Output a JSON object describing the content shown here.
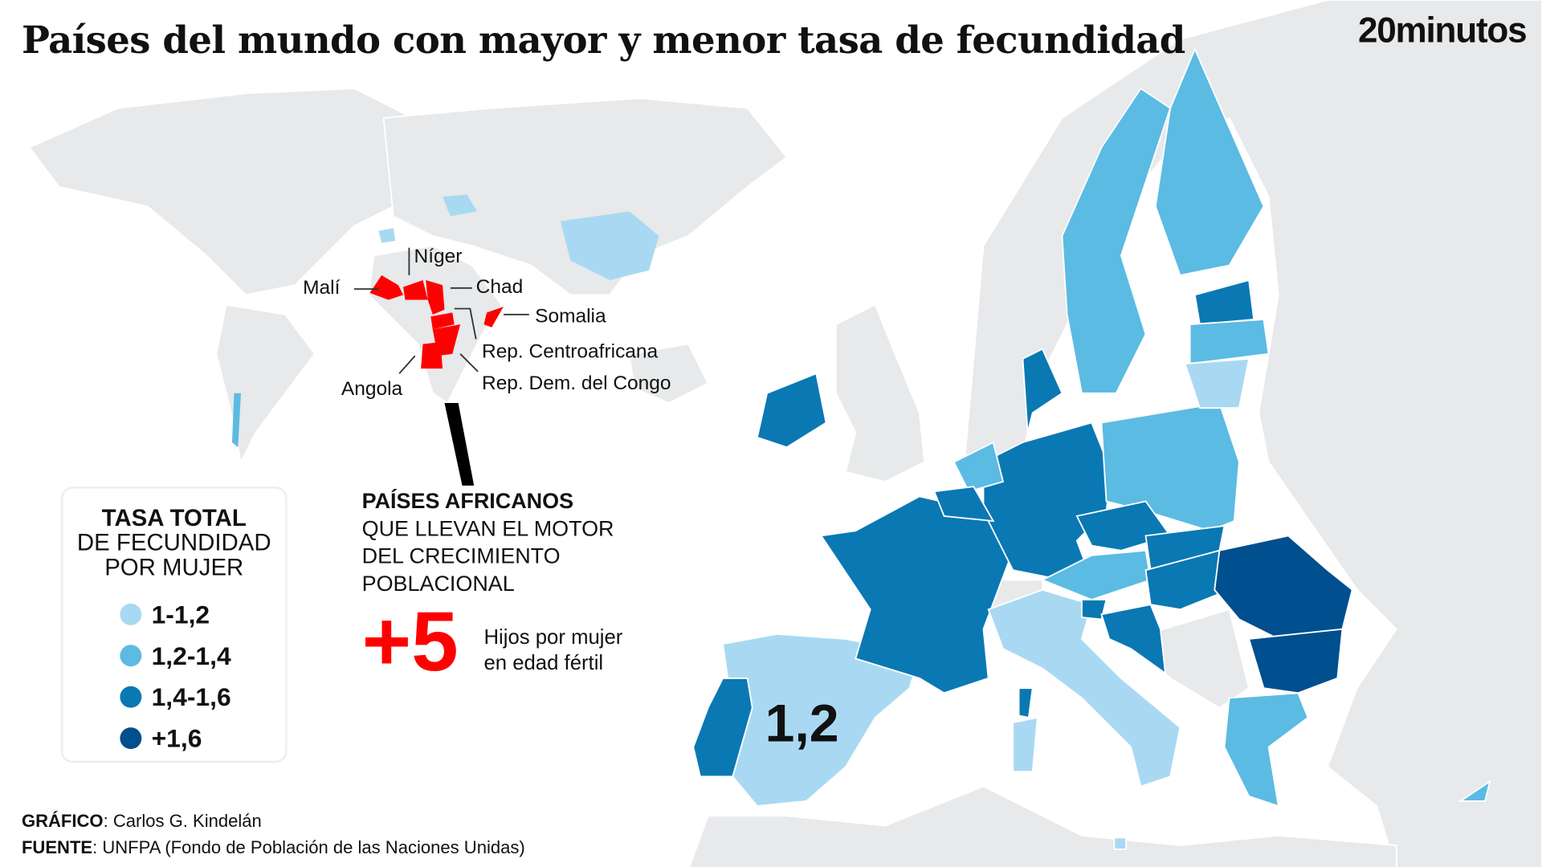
{
  "title": "Países del mundo con mayor y menor tasa de fecundidad",
  "logo": "20minutos",
  "colors": {
    "c1": "#a9d9f2",
    "c2": "#5bbbe3",
    "c3": "#0a78b3",
    "c4": "#004f8e",
    "highlight": "#ff0000",
    "land": "#e7e9eb"
  },
  "africa_labels": [
    "Malí",
    "Níger",
    "Chad",
    "Somalia",
    "Rep. Centroafricana",
    "Rep. Dem. del Congo",
    "Angola"
  ],
  "legend": {
    "title_bold": "TASA TOTAL",
    "title_rest": [
      "DE FECUNDIDAD",
      "POR MUJER"
    ],
    "items": [
      {
        "label": "1-1,2",
        "color": "#a9d9f2"
      },
      {
        "label": "1,2-1,4",
        "color": "#5bbbe3"
      },
      {
        "label": "1,4-1,6",
        "color": "#0a78b3"
      },
      {
        "label": "+1,6",
        "color": "#004f8e"
      }
    ]
  },
  "callout": {
    "heading": "PAÍSES AFRICANOS",
    "lines": [
      "QUE LLEVAN EL MOTOR",
      "DEL CRECIMIENTO",
      "POBLACIONAL"
    ],
    "big_value": "+5",
    "big_caption": [
      "Hijos por mujer",
      "en edad fértil"
    ]
  },
  "spain_value": "1,2",
  "credits": {
    "graphic_label": "GRÁFICO",
    "graphic_value": ": Carlos G. Kindelán",
    "source_label": "FUENTE",
    "source_value": ": UNFPA (Fondo de Población de las Naciones Unidas)"
  }
}
